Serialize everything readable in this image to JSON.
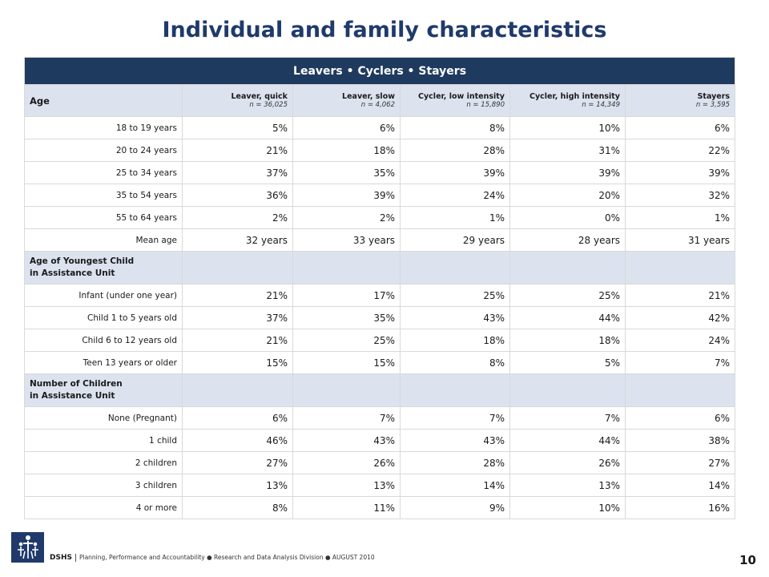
{
  "title": "Individual and family characteristics",
  "banner": "Leavers • Cyclers • Stayers",
  "row_header": "Age",
  "groups": [
    {
      "name": "Leaver, quick",
      "n": "n = 36,025"
    },
    {
      "name": "Leaver, slow",
      "n": "n = 4,062"
    },
    {
      "name": "Cycler, low intensity",
      "n": "n = 15,890"
    },
    {
      "name": "Cycler, high intensity",
      "n": "n = 14,349"
    },
    {
      "name": "Stayers",
      "n": "n = 3,595"
    }
  ],
  "age_rows": [
    {
      "label": "18 to 19 years",
      "values": [
        "5%",
        "6%",
        "8%",
        "10%",
        "6%"
      ]
    },
    {
      "label": "20 to 24 years",
      "values": [
        "21%",
        "18%",
        "28%",
        "31%",
        "22%"
      ]
    },
    {
      "label": "25 to 34 years",
      "values": [
        "37%",
        "35%",
        "39%",
        "39%",
        "39%"
      ]
    },
    {
      "label": "35 to 54 years",
      "values": [
        "36%",
        "39%",
        "24%",
        "20%",
        "32%"
      ]
    },
    {
      "label": "55 to 64 years",
      "values": [
        "2%",
        "2%",
        "1%",
        "0%",
        "1%"
      ]
    },
    {
      "label": "Mean age",
      "values": [
        "32 years",
        "33 years",
        "29 years",
        "28 years",
        "31 years"
      ]
    }
  ],
  "youngest_section": {
    "line1": "Age of Youngest Child",
    "line2": "in Assistance Unit"
  },
  "youngest_rows": [
    {
      "label": "Infant (under one year)",
      "values": [
        "21%",
        "17%",
        "25%",
        "25%",
        "21%"
      ]
    },
    {
      "label": "Child 1 to 5 years old",
      "values": [
        "37%",
        "35%",
        "43%",
        "44%",
        "42%"
      ]
    },
    {
      "label": "Child 6 to 12 years old",
      "values": [
        "21%",
        "25%",
        "18%",
        "18%",
        "24%"
      ]
    },
    {
      "label": "Teen 13 years or older",
      "values": [
        "15%",
        "15%",
        "8%",
        "5%",
        "7%"
      ]
    }
  ],
  "children_section": {
    "line1": "Number of Children",
    "line2": "in Assistance Unit"
  },
  "children_rows": [
    {
      "label": "None (Pregnant)",
      "values": [
        "6%",
        "7%",
        "7%",
        "7%",
        "6%"
      ]
    },
    {
      "label": "1 child",
      "values": [
        "46%",
        "43%",
        "43%",
        "44%",
        "38%"
      ]
    },
    {
      "label": "2 children",
      "values": [
        "27%",
        "26%",
        "28%",
        "26%",
        "27%"
      ]
    },
    {
      "label": "3 children",
      "values": [
        "13%",
        "13%",
        "14%",
        "13%",
        "14%"
      ]
    },
    {
      "label": "4 or more",
      "values": [
        "8%",
        "11%",
        "9%",
        "10%",
        "16%"
      ]
    }
  ],
  "footer": {
    "logo_icon": "dshs-family-logo-icon",
    "org": "DSHS",
    "text": "Planning, Performance and Accountability ● Research and Data Analysis Division ● AUGUST 2010"
  },
  "page_number": "10",
  "colors": {
    "title": "#1f3a6b",
    "banner": "#1f3a5f",
    "shade": "#dce3ef",
    "logo": "#1f3a6b"
  }
}
